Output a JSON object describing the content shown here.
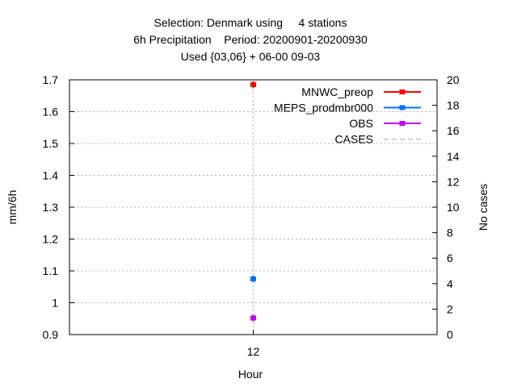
{
  "title": {
    "line1": "Selection: Denmark using     4 stations",
    "line2": "6h Precipitation    Period: 20200901-20200930",
    "line3": "Used {03,06} + 06-00 09-03"
  },
  "chart_data": {
    "type": "scatter",
    "xlabel": "Hour",
    "ylabel": "mm/6h",
    "y2label": "No cases",
    "x_ticks": [
      "12"
    ],
    "ylim": [
      0.9,
      1.7
    ],
    "y_ticks": [
      "0.9",
      "1",
      "1.1",
      "1.2",
      "1.3",
      "1.4",
      "1.5",
      "1.6",
      "1.7"
    ],
    "y2lim": [
      0,
      20
    ],
    "y2_ticks": [
      "0",
      "2",
      "4",
      "6",
      "8",
      "10",
      "12",
      "14",
      "16",
      "18",
      "20"
    ],
    "grid": true,
    "legend_position": "top-right",
    "series": [
      {
        "name": "MNWC_preop",
        "color": "#ff0000",
        "x": [
          "12"
        ],
        "values": [
          1.685
        ]
      },
      {
        "name": "MEPS_prodmbr000",
        "color": "#0072ff",
        "x": [
          "12"
        ],
        "values": [
          1.075
        ]
      },
      {
        "name": "OBS",
        "color": "#c000ff",
        "x": [
          "12"
        ],
        "values": [
          0.952
        ]
      },
      {
        "name": "CASES",
        "color": "#aaaaaa",
        "dashed": true,
        "axis": "y2",
        "x": [
          "12"
        ],
        "values": [
          4
        ]
      }
    ]
  }
}
